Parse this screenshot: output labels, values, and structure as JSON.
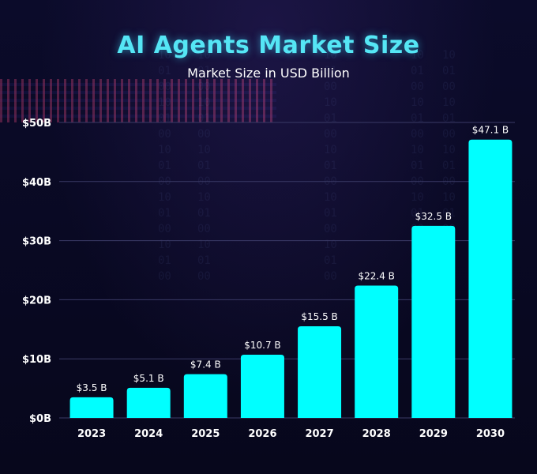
{
  "chart_data": {
    "type": "bar",
    "title": "AI Agents Market Size",
    "subtitle": "Market Size in USD Billion",
    "categories": [
      "2023",
      "2024",
      "2025",
      "2026",
      "2027",
      "2028",
      "2029",
      "2030"
    ],
    "values": [
      3.5,
      5.1,
      7.4,
      10.7,
      15.5,
      22.4,
      32.5,
      47.1
    ],
    "value_labels": [
      "$3.5 B",
      "$5.1 B",
      "$7.4 B",
      "$10.7 B",
      "$15.5 B",
      "$22.4 B",
      "$32.5 B",
      "$47.1 B"
    ],
    "y_ticks": [
      0,
      10,
      20,
      30,
      40,
      50
    ],
    "y_tick_labels": [
      "$0B",
      "$10B",
      "$20B",
      "$30B",
      "$40B",
      "$50B"
    ],
    "ylim": [
      0,
      50
    ],
    "xlabel": "",
    "ylabel": "",
    "grid": true,
    "legend": "none",
    "colors": {
      "bar": "#00ffff",
      "title": "#55e6f5",
      "text": "#ffffff",
      "gridline": "#3a3a66",
      "background": "#0a0a24"
    }
  }
}
